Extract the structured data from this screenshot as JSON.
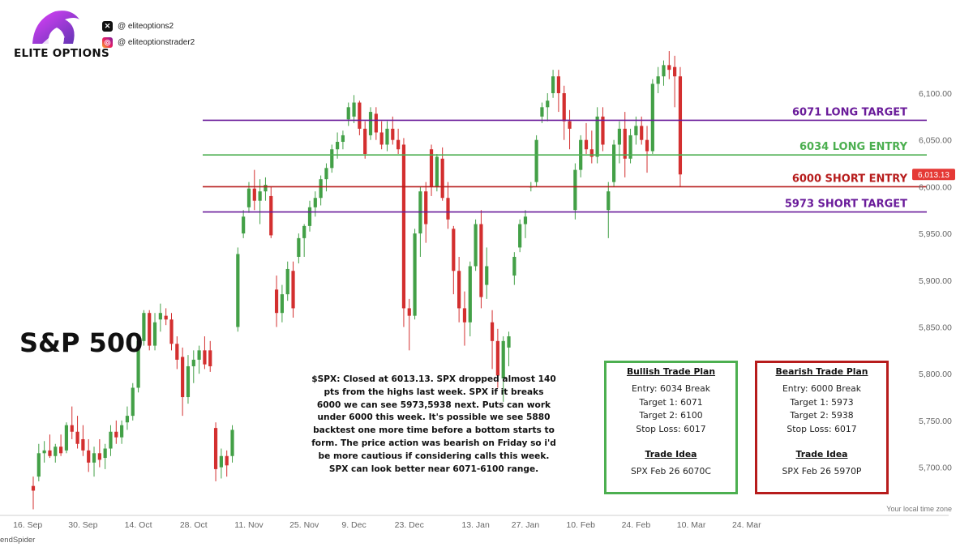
{
  "brand": {
    "name": "ELITE OPTIONS",
    "x_handle": "@ eliteoptions2",
    "instagram_handle": "@ eliteoptionstrader2",
    "colors": {
      "purple": "#7b2fd0",
      "pink": "#e040fb"
    }
  },
  "title": "S&P 500",
  "watermark": "endSpider",
  "time_zone_label": "Your local time zone",
  "commentary": "$SPX: Closed at 6013.13. SPX dropped almost 140 pts from the highs last week. SPX if it breaks 6000 we can see 5973,5938 next. Puts can work under 6000 this week. It's possible we see 5880 backtest one more time before a bottom starts to form. The price action was bearish on Friday so i'd be more cautious if considering calls this week. SPX can look better near 6071-6100 range.",
  "bullish_plan": {
    "title": "Bullish Trade Plan",
    "entry": "Entry: 6034 Break",
    "target1": "Target 1: 6071",
    "target2": "Target 2: 6100",
    "stop": "Stop Loss: 6017",
    "idea_title": "Trade Idea",
    "idea": "SPX Feb 26 6070C",
    "color": "#4caf50"
  },
  "bearish_plan": {
    "title": "Bearish Trade Plan",
    "entry": "Entry: 6000 Break",
    "target1": "Target 1: 5973",
    "target2": "Target 2: 5938",
    "stop": "Stop Loss: 6017",
    "idea_title": "Trade Idea",
    "idea": "SPX Feb 26 5970P",
    "color": "#b71c1c"
  },
  "chart_data": {
    "type": "candlestick",
    "title": "S&P 500",
    "xlabel": "",
    "ylabel": "",
    "ylim": [
      5650,
      6150
    ],
    "y_ticks": [
      "5,700.00",
      "5,750.00",
      "5,800.00",
      "5,850.00",
      "5,900.00",
      "5,950.00",
      "6,000.00",
      "6,050.00",
      "6,100.00"
    ],
    "y_tick_values": [
      5700,
      5750,
      5800,
      5850,
      5900,
      5950,
      6000,
      6050,
      6100
    ],
    "x_ticks": [
      {
        "label": "16. Sep",
        "index": -1
      },
      {
        "label": "30. Sep",
        "index": 9
      },
      {
        "label": "14. Oct",
        "index": 19
      },
      {
        "label": "28. Oct",
        "index": 29
      },
      {
        "label": "11. Nov",
        "index": 39
      },
      {
        "label": "25. Nov",
        "index": 49
      },
      {
        "label": "9. Dec",
        "index": 58
      },
      {
        "label": "23. Dec",
        "index": 68
      },
      {
        "label": "13. Jan",
        "index": 80
      },
      {
        "label": "27. Jan",
        "index": 89
      },
      {
        "label": "10. Feb",
        "index": 99
      },
      {
        "label": "24. Feb",
        "index": 109
      },
      {
        "label": "10. Mar",
        "index": 119
      },
      {
        "label": "24. Mar",
        "index": 129
      }
    ],
    "last_price": 6013.13,
    "last_price_label": "6,013.13",
    "up_color": "#43a047",
    "down_color": "#d32f2f",
    "levels": [
      {
        "label": "6071 LONG TARGET",
        "value": 6071,
        "color": "#6a1b9a"
      },
      {
        "label": "6034 LONG ENTRY",
        "value": 6034,
        "color": "#4caf50"
      },
      {
        "label": "6000 SHORT ENTRY",
        "value": 6000,
        "color": "#b71c1c"
      },
      {
        "label": "5973 SHORT TARGET",
        "value": 5973,
        "color": "#6a1b9a"
      }
    ],
    "ohlc": [
      [
        5680,
        5690,
        5655,
        5675
      ],
      [
        5690,
        5725,
        5685,
        5715
      ],
      [
        5715,
        5728,
        5705,
        5718
      ],
      [
        5718,
        5735,
        5710,
        5712
      ],
      [
        5712,
        5725,
        5705,
        5722
      ],
      [
        5722,
        5735,
        5712,
        5715
      ],
      [
        5718,
        5748,
        5715,
        5745
      ],
      [
        5745,
        5765,
        5730,
        5738
      ],
      [
        5738,
        5755,
        5720,
        5725
      ],
      [
        5730,
        5745,
        5712,
        5718
      ],
      [
        5718,
        5730,
        5695,
        5705
      ],
      [
        5705,
        5722,
        5690,
        5715
      ],
      [
        5715,
        5730,
        5700,
        5708
      ],
      [
        5710,
        5725,
        5698,
        5720
      ],
      [
        5720,
        5745,
        5712,
        5738
      ],
      [
        5738,
        5750,
        5725,
        5732
      ],
      [
        5732,
        5750,
        5725,
        5745
      ],
      [
        5748,
        5765,
        5740,
        5755
      ],
      [
        5755,
        5790,
        5750,
        5785
      ],
      [
        5785,
        5840,
        5780,
        5835
      ],
      [
        5835,
        5868,
        5830,
        5865
      ],
      [
        5865,
        5868,
        5825,
        5830
      ],
      [
        5830,
        5865,
        5825,
        5855
      ],
      [
        5858,
        5875,
        5845,
        5865
      ],
      [
        5862,
        5870,
        5852,
        5858
      ],
      [
        5858,
        5865,
        5825,
        5832
      ],
      [
        5832,
        5840,
        5805,
        5815
      ],
      [
        5818,
        5828,
        5755,
        5775
      ],
      [
        5775,
        5820,
        5768,
        5808
      ],
      [
        5808,
        5825,
        5790,
        5815
      ],
      [
        5815,
        5830,
        5800,
        5825
      ],
      [
        5825,
        5840,
        5805,
        5810
      ],
      [
        5825,
        5835,
        5802,
        5808
      ],
      [
        5742,
        5748,
        5685,
        5698
      ],
      [
        5700,
        5720,
        5688,
        5712
      ],
      [
        5712,
        5718,
        5690,
        5702
      ],
      [
        5712,
        5745,
        5705,
        5740
      ],
      [
        5850,
        5935,
        5845,
        5928
      ],
      [
        5950,
        5975,
        5945,
        5968
      ],
      [
        5978,
        6005,
        5972,
        5998
      ],
      [
        5998,
        6018,
        5975,
        5985
      ],
      [
        5985,
        6008,
        5960,
        5995
      ],
      [
        5995,
        6010,
        5985,
        6002
      ],
      [
        5990,
        6000,
        5945,
        5948
      ],
      [
        5890,
        5905,
        5850,
        5865
      ],
      [
        5865,
        5895,
        5855,
        5885
      ],
      [
        5885,
        5920,
        5878,
        5912
      ],
      [
        5910,
        5920,
        5860,
        5870
      ],
      [
        5925,
        5950,
        5918,
        5945
      ],
      [
        5945,
        5960,
        5925,
        5958
      ],
      [
        5958,
        5985,
        5952,
        5978
      ],
      [
        5978,
        5995,
        5968,
        5988
      ],
      [
        5988,
        6012,
        5980,
        6008
      ],
      [
        6008,
        6025,
        5995,
        6020
      ],
      [
        6020,
        6045,
        6015,
        6040
      ],
      [
        6040,
        6058,
        6030,
        6048
      ],
      [
        6048,
        6060,
        6040,
        6055
      ],
      [
        6072,
        6090,
        6065,
        6085
      ],
      [
        6075,
        6098,
        6068,
        6090
      ],
      [
        6090,
        6092,
        6055,
        6062
      ],
      [
        6062,
        6070,
        6030,
        6035
      ],
      [
        6055,
        6085,
        6050,
        6080
      ],
      [
        6078,
        6085,
        6050,
        6058
      ],
      [
        6058,
        6070,
        6040,
        6045
      ],
      [
        6045,
        6070,
        6038,
        6062
      ],
      [
        6062,
        6075,
        6045,
        6050
      ],
      [
        6050,
        6062,
        6035,
        6040
      ],
      [
        6045,
        6052,
        5850,
        5870
      ],
      [
        5870,
        5880,
        5825,
        5862
      ],
      [
        5862,
        5955,
        5858,
        5950
      ],
      [
        5950,
        6000,
        5925,
        5995
      ],
      [
        5995,
        6005,
        5940,
        5960
      ],
      [
        6040,
        6045,
        5990,
        6000
      ],
      [
        6000,
        6035,
        5995,
        6032
      ],
      [
        6030,
        6042,
        5985,
        5988
      ],
      [
        5988,
        6005,
        5955,
        5965
      ],
      [
        5955,
        5958,
        5885,
        5910
      ],
      [
        5910,
        5925,
        5855,
        5870
      ],
      [
        5870,
        5888,
        5830,
        5855
      ],
      [
        5855,
        5920,
        5840,
        5915
      ],
      [
        5915,
        5965,
        5910,
        5960
      ],
      [
        5960,
        5975,
        5870,
        5882
      ],
      [
        5895,
        5935,
        5880,
        5915
      ],
      [
        5855,
        5868,
        5805,
        5835
      ],
      [
        5835,
        5848,
        5785,
        5798
      ],
      [
        5795,
        5840,
        5770,
        5835
      ],
      [
        5828,
        5845,
        5808,
        5840
      ],
      [
        5905,
        5930,
        5895,
        5925
      ],
      [
        5935,
        5965,
        5930,
        5960
      ],
      [
        5960,
        5975,
        5945,
        5968
      ],
      [
        6000,
        6005,
        5995,
        6000
      ],
      [
        6005,
        6055,
        6000,
        6050
      ],
      [
        6075,
        6090,
        6068,
        6085
      ],
      [
        6085,
        6100,
        6070,
        6092
      ],
      [
        6100,
        6125,
        6095,
        6118
      ],
      [
        6118,
        6125,
        6080,
        6100
      ],
      [
        6100,
        6108,
        6050,
        6070
      ],
      [
        6070,
        6082,
        6040,
        6062
      ],
      [
        5975,
        6025,
        5965,
        6018
      ],
      [
        6018,
        6055,
        6010,
        6050
      ],
      [
        6050,
        6068,
        6035,
        6040
      ],
      [
        6040,
        6060,
        6025,
        6032
      ],
      [
        6032,
        6085,
        6025,
        6075
      ],
      [
        6075,
        6085,
        6038,
        6045
      ],
      [
        5975,
        6005,
        5945,
        5995
      ],
      [
        6005,
        6050,
        6000,
        6045
      ],
      [
        6045,
        6070,
        6025,
        6062
      ],
      [
        6062,
        6080,
        6010,
        6030
      ],
      [
        6030,
        6062,
        6025,
        6055
      ],
      [
        6055,
        6075,
        6045,
        6065
      ],
      [
        6065,
        6075,
        6045,
        6050
      ],
      [
        6050,
        6065,
        6015,
        6038
      ],
      [
        6038,
        6115,
        6035,
        6110
      ],
      [
        6110,
        6128,
        6100,
        6118
      ],
      [
        6118,
        6135,
        6108,
        6130
      ],
      [
        6130,
        6145,
        6115,
        6125
      ],
      [
        6128,
        6140,
        6085,
        6118
      ],
      [
        6118,
        6128,
        6000,
        6013.13
      ]
    ]
  }
}
